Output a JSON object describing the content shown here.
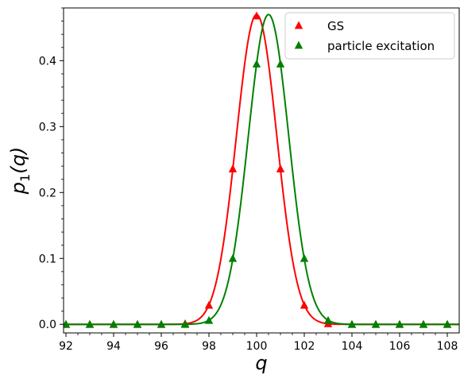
{
  "chart_data": {
    "type": "line",
    "title": "",
    "xlabel": "q",
    "ylabel_main": "p",
    "ylabel_sub": "1",
    "ylabel_arg": "(q)",
    "xlim": [
      91.9,
      108.5
    ],
    "ylim": [
      -0.013,
      0.48
    ],
    "x_ticks": [
      92,
      94,
      96,
      98,
      100,
      102,
      104,
      106,
      108
    ],
    "x_tick_labels": [
      "92",
      "94",
      "96",
      "98",
      "100",
      "102",
      "104",
      "106",
      "108"
    ],
    "y_ticks": [
      0.0,
      0.1,
      0.2,
      0.3,
      0.4
    ],
    "y_tick_labels": [
      "0.0",
      "0.1",
      "0.2",
      "0.3",
      "0.4"
    ],
    "grid": false,
    "legend_position": "top-right",
    "series": [
      {
        "name": "GS",
        "color": "#ff0000",
        "marker": "triangle",
        "curve": {
          "center": 100.0,
          "sigma": 0.85,
          "peak": 0.47
        },
        "x": [
          92,
          93,
          94,
          95,
          96,
          97,
          98,
          99,
          100,
          101,
          102,
          103,
          104,
          105,
          106,
          107,
          108
        ],
        "values": [
          0,
          0,
          0,
          0,
          0,
          0.001,
          0.029,
          0.236,
          0.468,
          0.236,
          0.029,
          0.001,
          0,
          0,
          0,
          0,
          0
        ]
      },
      {
        "name": "particle excitation",
        "color": "#008000",
        "marker": "triangle",
        "curve": {
          "center": 100.5,
          "sigma": 0.85,
          "peak": 0.47
        },
        "x": [
          92,
          93,
          94,
          95,
          96,
          97,
          98,
          99,
          100,
          101,
          102,
          103,
          104,
          105,
          106,
          107,
          108
        ],
        "values": [
          0,
          0,
          0,
          0,
          0,
          0,
          0.006,
          0.1,
          0.395,
          0.395,
          0.1,
          0.006,
          0,
          0,
          0,
          0,
          0
        ]
      }
    ]
  }
}
